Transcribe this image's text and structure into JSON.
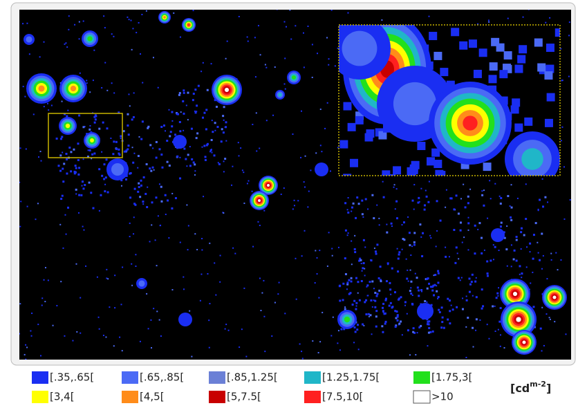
{
  "legend": [
    {
      "label": "[.35,.65[",
      "color": "#1a2ef2"
    },
    {
      "label": "[.65,.85[",
      "color": "#4b6af5"
    },
    {
      "label": "[.85,1.25[",
      "color": "#6b80d6"
    },
    {
      "label": "[1.25,1.75[",
      "color": "#20b6c8"
    },
    {
      "label": "[1.75,3[",
      "color": "#22e01c"
    },
    {
      "label": "[3,4[",
      "color": "#ffff00"
    },
    {
      "label": "[4,5[",
      "color": "#ff8c1a"
    },
    {
      "label": "[5,7.5[",
      "color": "#c80000"
    },
    {
      "label": "[7.5,10[",
      "color": "#ff2020"
    },
    {
      "label": ">10",
      "color": "#ffffff"
    }
  ],
  "unit": {
    "prefix": "[cd",
    "superscript": "m-2",
    "suffix": "]"
  }
}
